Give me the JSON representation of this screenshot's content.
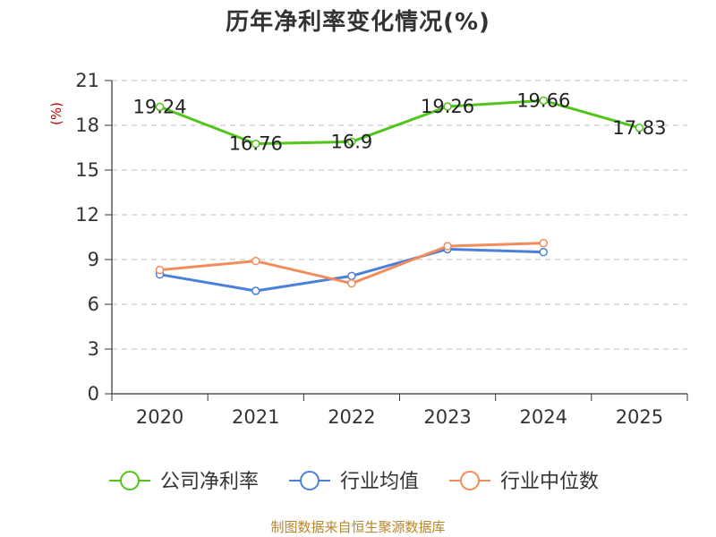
{
  "chart_data": {
    "type": "line",
    "title": "历年净利率变化情况(%)",
    "ylabel": "(%)",
    "xlabel": "",
    "categories": [
      "2020",
      "2021",
      "2022",
      "2023",
      "2024",
      "2025"
    ],
    "ylim": [
      0,
      21
    ],
    "yticks": [
      0,
      3,
      6,
      9,
      12,
      15,
      18,
      21
    ],
    "grid": true,
    "legend_position": "bottom",
    "series": [
      {
        "name": "公司净利率",
        "color": "#52c41a",
        "values": [
          19.24,
          16.76,
          16.9,
          19.26,
          19.66,
          17.83
        ],
        "labels": [
          "19.24",
          "16.76",
          "16.9",
          "19.26",
          "19.66",
          "17.83"
        ]
      },
      {
        "name": "行业均值",
        "color": "#4a7fdc",
        "values": [
          8.0,
          6.9,
          7.9,
          9.7,
          9.5,
          null
        ]
      },
      {
        "name": "行业中位数",
        "color": "#f28c5c",
        "values": [
          8.3,
          8.9,
          7.4,
          9.9,
          10.1,
          null
        ]
      }
    ]
  },
  "footer": "制图数据来自恒生聚源数据库"
}
